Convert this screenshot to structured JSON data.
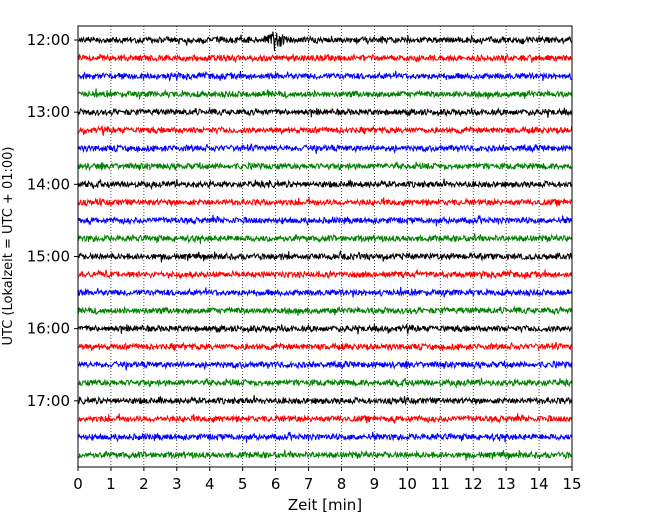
{
  "chart_data": {
    "type": "line",
    "title": "",
    "xlabel": "Zeit  [min]",
    "ylabel": "UTC (Lokalzeit = UTC + 01:00)",
    "xlim": [
      0,
      15
    ],
    "x_ticks": [
      "0",
      "1",
      "2",
      "3",
      "4",
      "5",
      "6",
      "7",
      "8",
      "9",
      "10",
      "11",
      "12",
      "13",
      "14",
      "15"
    ],
    "y_tick_labels": [
      "12:00",
      "13:00",
      "14:00",
      "15:00",
      "16:00",
      "17:00"
    ],
    "grid": "vertical dotted",
    "trace_interval_minutes": 15,
    "trace_start": "12:00",
    "trace_count": 24,
    "trace_colors": [
      "#000000",
      "#ff0000",
      "#0000ff",
      "#008000"
    ],
    "event_note": {
      "trace_index": 0,
      "x_minute": 6.0
    }
  }
}
